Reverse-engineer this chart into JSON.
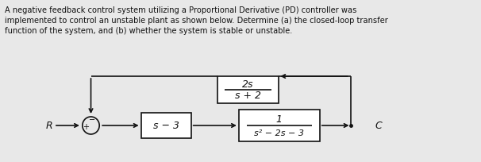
{
  "bg_color": "#e8e8e8",
  "text_color": "#111111",
  "line_color": "#111111",
  "description": [
    "A negative feedback control system utilizing a Proportional Derivative (PD) controller was",
    "implemented to control an unstable plant as shown below. Determine (a) the closed-loop transfer",
    "function of the system, and (b) whether the system is stable or unstable."
  ],
  "block_forward1_label": "s − 3",
  "block_forward2_label_num": "1",
  "block_forward2_label_den": "s² − 2s − 3",
  "block_feedback_label_num": "2s",
  "block_feedback_label_den": "s + 2",
  "R_label": "R",
  "C_label": "C",
  "plus_label": "+",
  "minus_label": "−"
}
